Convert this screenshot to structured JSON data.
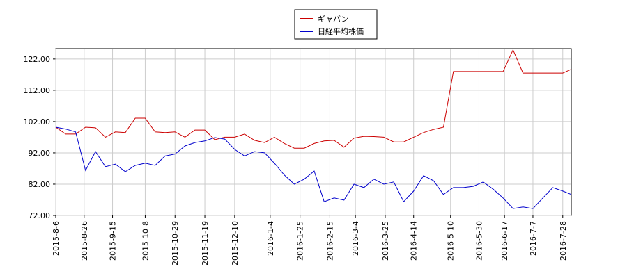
{
  "chart_data": {
    "type": "line",
    "x": [
      "2015-8-6",
      "2015-8-13",
      "2015-8-20",
      "2015-8-27",
      "2015-9-3",
      "2015-9-10",
      "2015-9-17",
      "2015-9-24",
      "2015-10-1",
      "2015-10-8",
      "2015-10-15",
      "2015-10-22",
      "2015-10-29",
      "2015-11-5",
      "2015-11-12",
      "2015-11-19",
      "2015-11-26",
      "2015-12-3",
      "2015-12-10",
      "2015-12-17",
      "2015-12-24",
      "2015-12-31",
      "2016-1-7",
      "2016-1-14",
      "2016-1-21",
      "2016-1-28",
      "2016-2-4",
      "2016-2-11",
      "2016-2-18",
      "2016-2-25",
      "2016-3-3",
      "2016-3-10",
      "2016-3-17",
      "2016-3-24",
      "2016-3-31",
      "2016-4-7",
      "2016-4-14",
      "2016-4-21",
      "2016-4-28",
      "2016-5-5",
      "2016-5-12",
      "2016-5-19",
      "2016-5-26",
      "2016-6-2",
      "2016-6-9",
      "2016-6-16",
      "2016-6-23",
      "2016-6-30",
      "2016-7-7",
      "2016-7-14",
      "2016-7-21",
      "2016-7-28",
      "2016-8-3"
    ],
    "series": [
      {
        "name": "ギャバン",
        "color": "#cc0000",
        "values": [
          100.2,
          98,
          98,
          100.2,
          100,
          97,
          98.7,
          98.5,
          103.1,
          103.1,
          98.7,
          98.5,
          98.7,
          97,
          99.3,
          99.3,
          96.2,
          97,
          97,
          98,
          96,
          95.3,
          97,
          95,
          93.5,
          93.5,
          95,
          95.8,
          96,
          93.8,
          96.7,
          97.3,
          97.2,
          97,
          95.5,
          95.5,
          97,
          98.5,
          99.5,
          100.2,
          118,
          118,
          118,
          118,
          118,
          118,
          124.9,
          117.5,
          117.5,
          117.5,
          117.5,
          117.5,
          118.7
        ]
      },
      {
        "name": "日経平均株価",
        "color": "#0000cc",
        "values": [
          100.2,
          99.6,
          98.7,
          86.4,
          92.4,
          87.6,
          88.4,
          86,
          88,
          88.7,
          88,
          91,
          91.6,
          94.2,
          95.3,
          95.8,
          96.9,
          96.4,
          93.1,
          91,
          92.4,
          92,
          88.7,
          84.9,
          82,
          83.6,
          86.2,
          76.4,
          77.6,
          76.9,
          82,
          80.9,
          83.6,
          82,
          82.7,
          76.4,
          79.8,
          84.7,
          83.1,
          78.7,
          80.9,
          80.9,
          81.3,
          82.7,
          80.4,
          77.6,
          74.2,
          74.7,
          74.2,
          77.6,
          80.9,
          79.8,
          78.7
        ]
      }
    ],
    "xlim": [
      "2015-8-6",
      "2016-8-3"
    ],
    "xticks": [
      "2015-8-6",
      "2015-8-26",
      "2015-9-15",
      "2015-10-8",
      "2015-10-29",
      "2015-11-19",
      "2015-12-10",
      "2016-1-4",
      "2016-1-25",
      "2016-2-15",
      "2016-3-4",
      "2016-3-25",
      "2016-4-14",
      "2016-5-10",
      "2016-5-30",
      "2016-6-17",
      "2016-7-7",
      "2016-7-28"
    ],
    "ylim": [
      72,
      125.3
    ],
    "yticks": [
      {
        "value": 72,
        "label": "72.00"
      },
      {
        "value": 82,
        "label": "82.00"
      },
      {
        "value": 92,
        "label": "92.00"
      },
      {
        "value": 102,
        "label": "102.00"
      },
      {
        "value": 112,
        "label": "112.00"
      },
      {
        "value": 122,
        "label": "122.00"
      }
    ],
    "grid": true
  }
}
